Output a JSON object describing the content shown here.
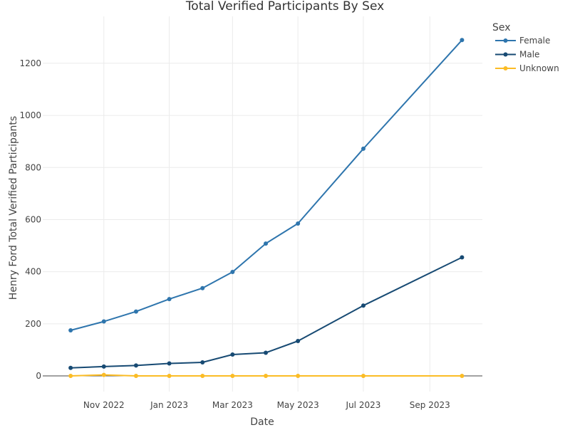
{
  "chart_data": {
    "type": "line",
    "title": "Total Verified Participants By Sex",
    "xlabel": "Date",
    "ylabel": "Henry Ford Total Verified Participants",
    "x_type": "date",
    "xlim": [
      "2022-09-05",
      "2023-10-20"
    ],
    "ylim": [
      -60,
      1380
    ],
    "x_ticks": [
      {
        "value": "2022-11-01",
        "label": "Nov 2022"
      },
      {
        "value": "2023-01-01",
        "label": "Jan 2023"
      },
      {
        "value": "2023-03-01",
        "label": "Mar 2023"
      },
      {
        "value": "2023-05-01",
        "label": "May 2023"
      },
      {
        "value": "2023-07-01",
        "label": "Jul 2023"
      },
      {
        "value": "2023-09-01",
        "label": "Sep 2023"
      }
    ],
    "y_ticks": [
      0,
      200,
      400,
      600,
      800,
      1000,
      1200
    ],
    "grid": true,
    "legend": {
      "title": "Sex",
      "position": "right"
    },
    "series": [
      {
        "name": "Female",
        "color": "#2e75ad",
        "points": [
          {
            "x": "2022-10-01",
            "y": 175
          },
          {
            "x": "2022-11-01",
            "y": 209
          },
          {
            "x": "2022-12-01",
            "y": 247
          },
          {
            "x": "2023-01-01",
            "y": 295
          },
          {
            "x": "2023-02-01",
            "y": 337
          },
          {
            "x": "2023-03-01",
            "y": 399
          },
          {
            "x": "2023-04-01",
            "y": 508
          },
          {
            "x": "2023-05-01",
            "y": 585
          },
          {
            "x": "2023-07-01",
            "y": 872
          },
          {
            "x": "2023-10-01",
            "y": 1289
          }
        ]
      },
      {
        "name": "Male",
        "color": "#174a73",
        "points": [
          {
            "x": "2022-10-01",
            "y": 31
          },
          {
            "x": "2022-11-01",
            "y": 36
          },
          {
            "x": "2022-12-01",
            "y": 40
          },
          {
            "x": "2023-01-01",
            "y": 48
          },
          {
            "x": "2023-02-01",
            "y": 52
          },
          {
            "x": "2023-03-01",
            "y": 82
          },
          {
            "x": "2023-04-01",
            "y": 89
          },
          {
            "x": "2023-05-01",
            "y": 134
          },
          {
            "x": "2023-07-01",
            "y": 270
          },
          {
            "x": "2023-10-01",
            "y": 455
          }
        ]
      },
      {
        "name": "Unknown",
        "color": "#fbbc25",
        "points": [
          {
            "x": "2022-10-01",
            "y": 0
          },
          {
            "x": "2022-11-01",
            "y": 4
          },
          {
            "x": "2022-12-01",
            "y": 0
          },
          {
            "x": "2023-01-01",
            "y": 0
          },
          {
            "x": "2023-02-01",
            "y": 0
          },
          {
            "x": "2023-03-01",
            "y": 0
          },
          {
            "x": "2023-04-01",
            "y": 0
          },
          {
            "x": "2023-05-01",
            "y": 0
          },
          {
            "x": "2023-07-01",
            "y": 0
          },
          {
            "x": "2023-10-01",
            "y": 0
          }
        ]
      }
    ]
  }
}
